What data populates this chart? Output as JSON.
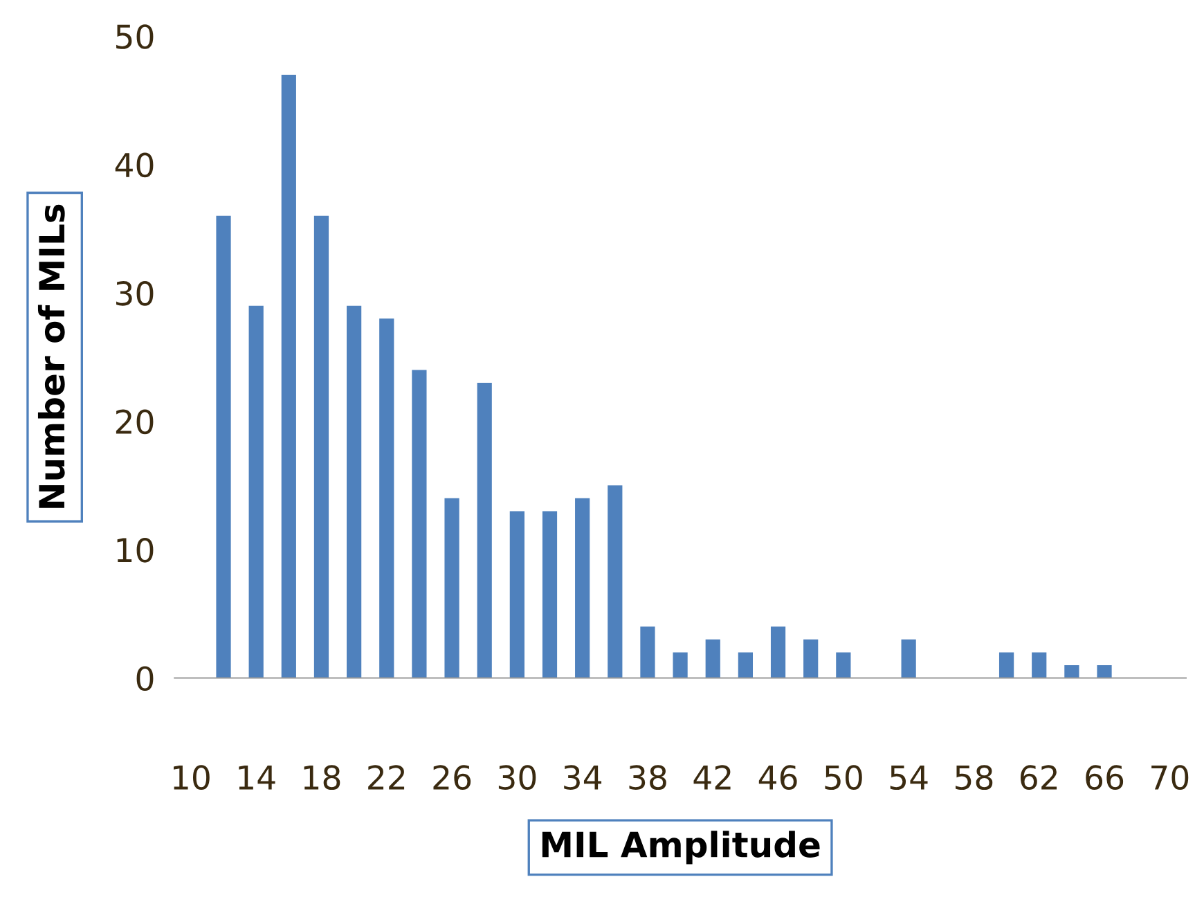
{
  "chart_data": {
    "type": "bar",
    "xlabel": "MIL Amplitude",
    "ylabel": "Number of MILs",
    "categories": [
      "10",
      null,
      "14",
      null,
      "18",
      null,
      "22",
      null,
      "26",
      null,
      "30",
      null,
      "34",
      null,
      "38",
      null,
      "42",
      null,
      "46",
      null,
      "50",
      null,
      "54",
      null,
      "58",
      null,
      "62",
      null,
      "66",
      null,
      "70"
    ],
    "values": [
      0,
      36,
      29,
      47,
      36,
      29,
      28,
      24,
      14,
      23,
      13,
      13,
      14,
      15,
      4,
      2,
      3,
      2,
      4,
      3,
      2,
      0,
      3,
      0,
      0,
      2,
      2,
      1,
      1,
      0,
      0
    ],
    "color": "#4f81bd",
    "ylim": [
      0,
      50
    ],
    "yticks": [
      0,
      10,
      20,
      30,
      40,
      50
    ],
    "grid": false,
    "legend": false
  }
}
